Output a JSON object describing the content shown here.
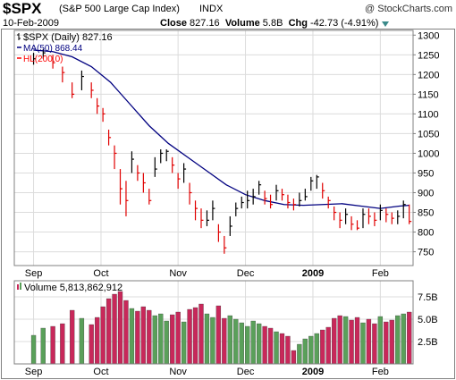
{
  "header": {
    "symbol": "$SPX",
    "company": "(S&P 500 Large Cap Index)",
    "exchange": "INDX",
    "brand": "@ StockCharts.com",
    "date": "10-Feb-2009",
    "close_label": "Close",
    "close_value": "827.16",
    "volume_label": "Volume",
    "volume_value": "5.8B",
    "chg_label": "Chg",
    "chg_value": "-42.73 (-4.91%)",
    "chg_arrow_icon": "triangle-down-icon"
  },
  "price_legend": [
    {
      "text": "$SPX (Daily) 827.16",
      "color": "#000000",
      "icon": "bar-icon"
    },
    {
      "text": "MA(50) 868.44",
      "color": "#000080",
      "icon": "line-icon"
    },
    {
      "text": "HL(200.0)",
      "color": "#ff0000",
      "icon": "line-icon"
    }
  ],
  "volume_legend": {
    "text": "Volume 5,813,862,912",
    "color": "#000000",
    "icon": "volume-icon"
  },
  "chart_data": [
    {
      "type": "line",
      "title": "$SPX (Daily) 827.16",
      "panel": "price",
      "x_tick_labels": [
        "Sep",
        "Oct",
        "Nov",
        "Dec",
        "2009",
        "Feb"
      ],
      "x_tick_positions": [
        10,
        45,
        85,
        120,
        155,
        190
      ],
      "x_range": [
        0,
        207
      ],
      "y_tick_labels": [
        "750",
        "800",
        "850",
        "900",
        "950",
        "1000",
        "1050",
        "1100",
        "1150",
        "1200",
        "1250",
        "1300"
      ],
      "ylim": [
        715,
        1312
      ],
      "grid": true,
      "series": [
        {
          "name": "$SPX (Daily) 827.16",
          "color": "#000000",
          "type": "ohlc",
          "x": [
            10,
            15,
            20,
            25,
            30,
            35,
            40,
            43,
            46,
            49,
            52,
            55,
            58,
            61,
            64,
            67,
            70,
            73,
            76,
            79,
            82,
            85,
            88,
            91,
            94,
            97,
            100,
            103,
            106,
            109,
            112,
            115,
            118,
            121,
            124,
            127,
            130,
            133,
            136,
            139,
            142,
            145,
            148,
            151,
            154,
            157,
            160,
            163,
            166,
            169,
            172,
            175,
            178,
            181,
            184,
            187,
            190,
            193,
            196,
            199,
            202,
            205
          ],
          "close": [
            1240,
            1255,
            1230,
            1205,
            1150,
            1195,
            1160,
            1120,
            1100,
            1040,
            1000,
            910,
            880,
            985,
            950,
            925,
            880,
            960,
            1000,
            1005,
            970,
            935,
            960,
            900,
            860,
            830,
            830,
            860,
            800,
            760,
            815,
            860,
            875,
            880,
            890,
            920,
            885,
            870,
            905,
            895,
            875,
            870,
            880,
            890,
            930,
            940,
            905,
            880,
            850,
            830,
            845,
            820,
            810,
            845,
            840,
            830,
            855,
            845,
            835,
            840,
            870,
            827
          ],
          "high": [
            1255,
            1265,
            1250,
            1220,
            1180,
            1210,
            1180,
            1140,
            1115,
            1060,
            1020,
            960,
            930,
            1005,
            970,
            950,
            910,
            990,
            1010,
            1010,
            990,
            950,
            975,
            925,
            880,
            860,
            855,
            880,
            820,
            790,
            840,
            875,
            890,
            905,
            910,
            930,
            905,
            895,
            920,
            910,
            895,
            885,
            900,
            910,
            940,
            945,
            925,
            890,
            865,
            850,
            860,
            840,
            830,
            860,
            860,
            850,
            870,
            860,
            850,
            855,
            880,
            870
          ],
          "low": [
            1225,
            1240,
            1215,
            1180,
            1140,
            1160,
            1140,
            1100,
            1080,
            1020,
            960,
            870,
            840,
            950,
            930,
            900,
            870,
            940,
            975,
            980,
            950,
            910,
            925,
            870,
            830,
            810,
            815,
            830,
            775,
            745,
            790,
            840,
            860,
            860,
            870,
            895,
            870,
            860,
            880,
            880,
            860,
            855,
            865,
            880,
            905,
            910,
            885,
            860,
            830,
            810,
            820,
            805,
            805,
            810,
            820,
            815,
            830,
            825,
            820,
            820,
            835,
            820
          ]
        },
        {
          "name": "MA(50) 868.44",
          "color": "#000080",
          "x": [
            10,
            20,
            30,
            40,
            50,
            60,
            70,
            80,
            90,
            100,
            110,
            120,
            130,
            140,
            150,
            160,
            170,
            180,
            190,
            200,
            205
          ],
          "y": [
            1262,
            1258,
            1245,
            1220,
            1180,
            1125,
            1070,
            1025,
            990,
            955,
            920,
            895,
            880,
            870,
            868,
            870,
            872,
            866,
            860,
            866,
            868
          ]
        },
        {
          "name": "HL(200.0)",
          "color": "#ff0000",
          "x": [],
          "y": []
        }
      ]
    },
    {
      "type": "bar",
      "title": "Volume 5,813,862,912",
      "panel": "volume",
      "x_tick_labels": [
        "Sep",
        "Oct",
        "Nov",
        "Dec",
        "2009",
        "Feb"
      ],
      "x_tick_positions": [
        10,
        45,
        85,
        120,
        155,
        190
      ],
      "x_range": [
        0,
        207
      ],
      "y_tick_labels": [
        "2.5B",
        "5.0B",
        "7.5B"
      ],
      "ylim": [
        0,
        9.3
      ],
      "units": "billions",
      "series": [
        {
          "name": "Volume",
          "up_color": "#5aa05a",
          "down_color": "#c8285a",
          "x": [
            10,
            15,
            20,
            25,
            30,
            35,
            40,
            43,
            46,
            49,
            52,
            55,
            58,
            61,
            64,
            67,
            70,
            73,
            76,
            79,
            82,
            85,
            88,
            91,
            94,
            97,
            100,
            103,
            106,
            109,
            112,
            115,
            118,
            121,
            124,
            127,
            130,
            133,
            136,
            139,
            142,
            145,
            148,
            151,
            154,
            157,
            160,
            163,
            166,
            169,
            172,
            175,
            178,
            181,
            184,
            187,
            190,
            193,
            196,
            199,
            202,
            205
          ],
          "values": [
            3.2,
            4.0,
            4.2,
            4.5,
            6.0,
            5.1,
            4.4,
            5.2,
            6.4,
            7.3,
            7.8,
            8.1,
            7.1,
            6.2,
            5.9,
            6.4,
            6.0,
            5.4,
            5.6,
            4.8,
            5.5,
            5.8,
            4.7,
            6.1,
            6.3,
            6.7,
            5.6,
            5.2,
            6.5,
            5.1,
            5.4,
            5.0,
            4.6,
            4.2,
            4.8,
            4.5,
            4.2,
            4.0,
            3.6,
            3.4,
            3.1,
            1.5,
            2.2,
            2.8,
            3.1,
            3.4,
            3.8,
            4.1,
            5.1,
            5.4,
            5.3,
            4.9,
            5.2,
            4.6,
            5.0,
            4.5,
            5.3,
            4.7,
            4.9,
            5.4,
            5.6,
            5.8
          ],
          "up": [
            true,
            true,
            false,
            false,
            false,
            true,
            false,
            false,
            false,
            false,
            false,
            false,
            false,
            true,
            false,
            false,
            false,
            true,
            true,
            true,
            false,
            false,
            true,
            false,
            false,
            false,
            true,
            true,
            false,
            false,
            true,
            true,
            true,
            true,
            true,
            true,
            false,
            false,
            true,
            false,
            false,
            false,
            true,
            true,
            true,
            true,
            false,
            false,
            false,
            false,
            true,
            false,
            false,
            true,
            false,
            false,
            true,
            false,
            false,
            true,
            true,
            false
          ]
        }
      ]
    }
  ]
}
